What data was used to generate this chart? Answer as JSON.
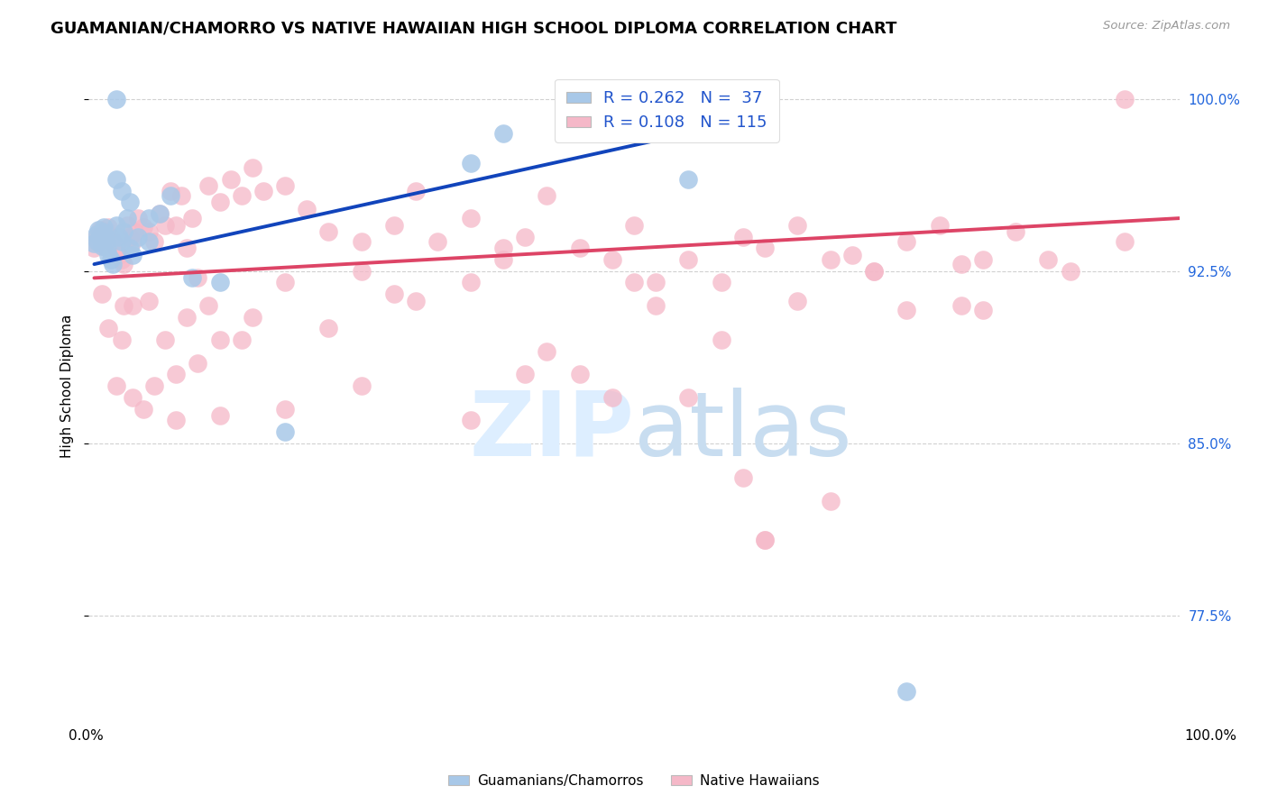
{
  "title": "GUAMANIAN/CHAMORRO VS NATIVE HAWAIIAN HIGH SCHOOL DIPLOMA CORRELATION CHART",
  "source": "Source: ZipAtlas.com",
  "ylabel": "High School Diploma",
  "ytick_labels": [
    "100.0%",
    "92.5%",
    "85.0%",
    "77.5%"
  ],
  "ytick_values": [
    1.0,
    0.925,
    0.85,
    0.775
  ],
  "xlim": [
    0.0,
    1.0
  ],
  "ylim": [
    0.735,
    1.015
  ],
  "legend_blue_R": "R = 0.262",
  "legend_blue_N": "N =  37",
  "legend_pink_R": "R = 0.108",
  "legend_pink_N": "N = 115",
  "blue_color": "#a8c8e8",
  "pink_color": "#f5b8c8",
  "line_blue_color": "#1144bb",
  "line_pink_color": "#dd4466",
  "watermark_color": "#ddeeff",
  "blue_x": [
    0.005,
    0.007,
    0.008,
    0.009,
    0.01,
    0.012,
    0.013,
    0.014,
    0.015,
    0.016,
    0.017,
    0.018,
    0.02,
    0.022,
    0.025,
    0.028,
    0.03,
    0.032,
    0.035,
    0.038,
    0.04,
    0.045,
    0.055,
    0.065,
    0.075,
    0.095,
    0.025,
    0.03,
    0.038,
    0.055,
    0.12,
    0.18,
    0.35,
    0.38,
    0.55,
    0.75,
    0.025
  ],
  "blue_y": [
    0.937,
    0.941,
    0.938,
    0.943,
    0.94,
    0.936,
    0.942,
    0.944,
    0.94,
    0.938,
    0.935,
    0.932,
    0.93,
    0.928,
    0.945,
    0.94,
    0.938,
    0.942,
    0.948,
    0.935,
    0.932,
    0.94,
    0.948,
    0.95,
    0.958,
    0.922,
    0.965,
    0.96,
    0.955,
    0.938,
    0.92,
    0.855,
    0.972,
    0.985,
    0.965,
    0.742,
    1.0
  ],
  "pink_x": [
    0.005,
    0.007,
    0.008,
    0.01,
    0.012,
    0.014,
    0.016,
    0.018,
    0.02,
    0.022,
    0.025,
    0.028,
    0.03,
    0.032,
    0.035,
    0.038,
    0.04,
    0.042,
    0.045,
    0.05,
    0.055,
    0.06,
    0.065,
    0.07,
    0.075,
    0.08,
    0.085,
    0.09,
    0.095,
    0.1,
    0.11,
    0.12,
    0.13,
    0.14,
    0.15,
    0.16,
    0.18,
    0.2,
    0.22,
    0.25,
    0.28,
    0.3,
    0.32,
    0.35,
    0.38,
    0.4,
    0.42,
    0.45,
    0.48,
    0.5,
    0.52,
    0.55,
    0.58,
    0.6,
    0.62,
    0.65,
    0.68,
    0.7,
    0.72,
    0.75,
    0.78,
    0.8,
    0.82,
    0.85,
    0.9,
    0.95,
    0.032,
    0.04,
    0.055,
    0.07,
    0.09,
    0.11,
    0.14,
    0.18,
    0.22,
    0.28,
    0.35,
    0.42,
    0.5,
    0.58,
    0.65,
    0.72,
    0.8,
    0.88,
    0.95,
    0.3,
    0.38,
    0.45,
    0.52,
    0.6,
    0.68,
    0.75,
    0.82,
    0.55,
    0.48,
    0.4,
    0.35,
    0.25,
    0.18,
    0.12,
    0.08,
    0.05,
    0.03,
    0.018,
    0.012,
    0.025,
    0.04,
    0.06,
    0.08,
    0.1,
    0.12,
    0.15,
    0.25,
    0.62,
    0.62
  ],
  "pink_y": [
    0.935,
    0.94,
    0.938,
    0.943,
    0.94,
    0.936,
    0.942,
    0.944,
    0.94,
    0.938,
    0.935,
    0.932,
    0.93,
    0.928,
    0.945,
    0.94,
    0.938,
    0.942,
    0.948,
    0.944,
    0.942,
    0.938,
    0.95,
    0.945,
    0.96,
    0.945,
    0.958,
    0.935,
    0.948,
    0.922,
    0.962,
    0.955,
    0.965,
    0.958,
    0.97,
    0.96,
    0.962,
    0.952,
    0.942,
    0.938,
    0.945,
    0.96,
    0.938,
    0.948,
    0.935,
    0.94,
    0.958,
    0.935,
    0.93,
    0.945,
    0.92,
    0.93,
    0.92,
    0.94,
    0.935,
    0.945,
    0.93,
    0.932,
    0.925,
    0.938,
    0.945,
    0.928,
    0.93,
    0.942,
    0.925,
    1.0,
    0.91,
    0.91,
    0.912,
    0.895,
    0.905,
    0.91,
    0.895,
    0.92,
    0.9,
    0.915,
    0.92,
    0.89,
    0.92,
    0.895,
    0.912,
    0.925,
    0.91,
    0.93,
    0.938,
    0.912,
    0.93,
    0.88,
    0.91,
    0.835,
    0.825,
    0.908,
    0.908,
    0.87,
    0.87,
    0.88,
    0.86,
    0.875,
    0.865,
    0.862,
    0.86,
    0.865,
    0.895,
    0.9,
    0.915,
    0.875,
    0.87,
    0.875,
    0.88,
    0.885,
    0.895,
    0.905,
    0.925,
    0.808,
    0.808
  ]
}
